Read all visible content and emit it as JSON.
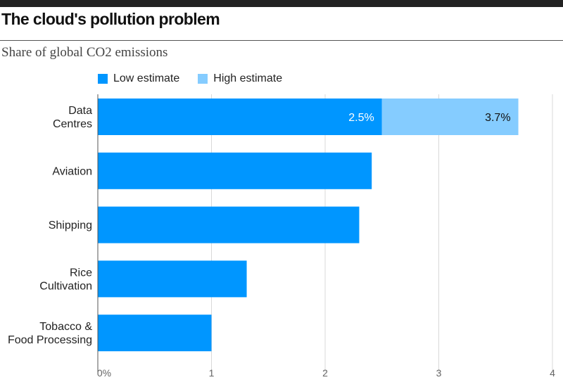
{
  "title": "The cloud's pollution problem",
  "subtitle": "Share of global CO2 emissions",
  "legend": [
    {
      "label": "Low estimate",
      "color": "#0096ff"
    },
    {
      "label": "High estimate",
      "color": "#85ccff"
    }
  ],
  "chart_data": {
    "type": "bar",
    "orientation": "horizontal",
    "stacked": true,
    "categories": [
      [
        "Data",
        "Centres"
      ],
      [
        "Aviation"
      ],
      [
        "Shipping"
      ],
      [
        "Rice",
        "Cultivation"
      ],
      [
        "Tobacco &",
        "Food Processing"
      ]
    ],
    "series": [
      {
        "name": "Low estimate",
        "values": [
          2.5,
          2.41,
          2.3,
          1.31,
          1.0
        ],
        "color": "#0096ff"
      },
      {
        "name": "High estimate",
        "values": [
          1.2,
          0,
          0,
          0,
          0
        ],
        "color": "#85ccff"
      }
    ],
    "data_labels": [
      {
        "category": 0,
        "series": 0,
        "text": "2.5%",
        "color": "#ffffff"
      },
      {
        "category": 0,
        "series": 1,
        "text": "3.7%",
        "color": "#111111"
      }
    ],
    "xlim": [
      0,
      4
    ],
    "ticks": [
      0,
      1,
      2,
      3,
      4
    ],
    "tick_labels": [
      "0%",
      "1",
      "2",
      "3",
      "4"
    ],
    "grid": true,
    "legend_position": "top-left"
  }
}
